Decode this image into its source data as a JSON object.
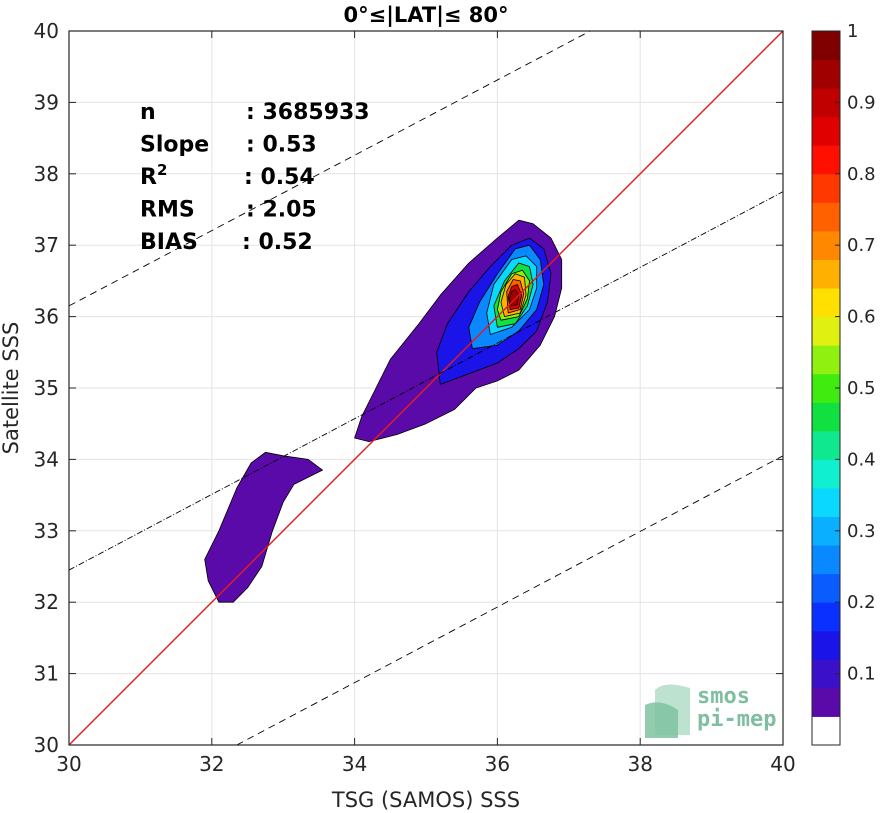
{
  "chart_data": {
    "type": "contour",
    "title": "0°≤|LAT|≤ 80°",
    "xlabel": "TSG (SAMOS) SSS",
    "ylabel": "Satellite SSS",
    "xlim": [
      30,
      40
    ],
    "ylim": [
      30,
      40
    ],
    "x_ticks": [
      "30",
      "32",
      "34",
      "36",
      "38",
      "40"
    ],
    "y_ticks": [
      "30",
      "31",
      "32",
      "33",
      "34",
      "35",
      "36",
      "37",
      "38",
      "39",
      "40"
    ],
    "grid": true,
    "stats": [
      {
        "label": "n",
        "value": ": 3685933"
      },
      {
        "label": "Slope",
        "value": ": 0.53"
      },
      {
        "label": "R",
        "sup": "2",
        "value": ": 0.54"
      },
      {
        "label": "RMS",
        "value": ": 2.05"
      },
      {
        "label": "BIAS",
        "value": ": 0.52"
      }
    ],
    "reference_lines": {
      "one_to_one": {
        "slope": 1,
        "intercept": 0,
        "color": "#e41a1c"
      },
      "regression": {
        "slope": 0.53,
        "intercept_point": [
          30,
          32.45
        ],
        "style": "dash-dot"
      },
      "upper_bound": {
        "points": [
          [
            30,
            36.15
          ],
          [
            37.3,
            40
          ]
        ],
        "style": "dashed"
      },
      "lower_bound": {
        "points": [
          [
            32.35,
            30
          ],
          [
            40,
            34.05
          ]
        ],
        "style": "dashed"
      }
    },
    "density_contours": [
      {
        "level": 0.05,
        "region": "left-blob",
        "polygon": [
          [
            32.1,
            32.0
          ],
          [
            32.3,
            32.0
          ],
          [
            32.5,
            32.2
          ],
          [
            32.7,
            32.5
          ],
          [
            32.85,
            33.0
          ],
          [
            33.0,
            33.4
          ],
          [
            33.15,
            33.65
          ],
          [
            33.35,
            33.75
          ],
          [
            33.55,
            33.85
          ],
          [
            33.35,
            34.0
          ],
          [
            33.0,
            34.05
          ],
          [
            32.75,
            34.1
          ],
          [
            32.55,
            33.95
          ],
          [
            32.35,
            33.6
          ],
          [
            32.1,
            33.0
          ],
          [
            31.9,
            32.6
          ],
          [
            31.95,
            32.3
          ]
        ]
      },
      {
        "level": 0.05,
        "region": "main-blob",
        "polygon": [
          [
            34.0,
            34.3
          ],
          [
            34.2,
            34.25
          ],
          [
            34.6,
            34.35
          ],
          [
            35.0,
            34.5
          ],
          [
            35.4,
            34.7
          ],
          [
            35.7,
            35.0
          ],
          [
            36.0,
            35.1
          ],
          [
            36.3,
            35.25
          ],
          [
            36.6,
            35.6
          ],
          [
            36.8,
            36.0
          ],
          [
            36.9,
            36.4
          ],
          [
            36.9,
            36.8
          ],
          [
            36.75,
            37.1
          ],
          [
            36.5,
            37.3
          ],
          [
            36.3,
            37.35
          ],
          [
            36.0,
            37.1
          ],
          [
            35.6,
            36.75
          ],
          [
            35.2,
            36.3
          ],
          [
            34.9,
            35.9
          ],
          [
            34.5,
            35.4
          ],
          [
            34.3,
            35.0
          ],
          [
            34.1,
            34.6
          ]
        ]
      },
      {
        "level": 0.15,
        "polygon": [
          [
            35.2,
            35.05
          ],
          [
            35.6,
            35.2
          ],
          [
            36.0,
            35.35
          ],
          [
            36.3,
            35.55
          ],
          [
            36.55,
            35.8
          ],
          [
            36.7,
            36.2
          ],
          [
            36.75,
            36.6
          ],
          [
            36.65,
            36.95
          ],
          [
            36.45,
            37.1
          ],
          [
            36.2,
            37.0
          ],
          [
            35.9,
            36.7
          ],
          [
            35.6,
            36.35
          ],
          [
            35.3,
            35.9
          ],
          [
            35.15,
            35.5
          ]
        ]
      },
      {
        "level": 0.25,
        "polygon": [
          [
            35.65,
            35.55
          ],
          [
            36.0,
            35.6
          ],
          [
            36.3,
            35.8
          ],
          [
            36.55,
            36.1
          ],
          [
            36.65,
            36.45
          ],
          [
            36.6,
            36.8
          ],
          [
            36.45,
            37.0
          ],
          [
            36.25,
            36.95
          ],
          [
            36.0,
            36.6
          ],
          [
            35.75,
            36.2
          ],
          [
            35.6,
            35.85
          ]
        ]
      },
      {
        "level": 0.35,
        "polygon": [
          [
            35.9,
            35.75
          ],
          [
            36.2,
            35.85
          ],
          [
            36.45,
            36.1
          ],
          [
            36.55,
            36.4
          ],
          [
            36.55,
            36.7
          ],
          [
            36.4,
            36.85
          ],
          [
            36.2,
            36.8
          ],
          [
            35.95,
            36.45
          ],
          [
            35.85,
            36.05
          ]
        ]
      },
      {
        "level": 0.45,
        "polygon": [
          [
            36.0,
            35.85
          ],
          [
            36.25,
            35.9
          ],
          [
            36.42,
            36.15
          ],
          [
            36.5,
            36.45
          ],
          [
            36.45,
            36.7
          ],
          [
            36.3,
            36.75
          ],
          [
            36.1,
            36.5
          ],
          [
            35.95,
            36.15
          ]
        ]
      },
      {
        "level": 0.55,
        "polygon": [
          [
            36.05,
            35.95
          ],
          [
            36.3,
            36.0
          ],
          [
            36.42,
            36.25
          ],
          [
            36.45,
            36.5
          ],
          [
            36.35,
            36.65
          ],
          [
            36.2,
            36.6
          ],
          [
            36.05,
            36.35
          ],
          [
            36.0,
            36.1
          ]
        ]
      },
      {
        "level": 0.65,
        "polygon": [
          [
            36.1,
            36.0
          ],
          [
            36.32,
            36.05
          ],
          [
            36.4,
            36.3
          ],
          [
            36.38,
            36.55
          ],
          [
            36.25,
            36.6
          ],
          [
            36.12,
            36.45
          ],
          [
            36.05,
            36.2
          ]
        ]
      },
      {
        "level": 0.75,
        "polygon": [
          [
            36.15,
            36.05
          ],
          [
            36.32,
            36.1
          ],
          [
            36.37,
            36.32
          ],
          [
            36.32,
            36.5
          ],
          [
            36.22,
            36.52
          ],
          [
            36.13,
            36.35
          ]
        ]
      },
      {
        "level": 0.85,
        "polygon": [
          [
            36.18,
            36.1
          ],
          [
            36.3,
            36.12
          ],
          [
            36.34,
            36.3
          ],
          [
            36.28,
            36.45
          ],
          [
            36.2,
            36.42
          ],
          [
            36.15,
            36.28
          ]
        ]
      },
      {
        "level": 0.92,
        "polygon": [
          [
            36.2,
            36.15
          ],
          [
            36.28,
            36.17
          ],
          [
            36.3,
            36.3
          ],
          [
            36.25,
            36.38
          ],
          [
            36.2,
            36.35
          ],
          [
            36.17,
            36.25
          ]
        ]
      }
    ],
    "colorbar": {
      "range": [
        0,
        1
      ],
      "ticks": [
        "0.1",
        "0.2",
        "0.3",
        "0.4",
        "0.5",
        "0.6",
        "0.7",
        "0.8",
        "0.9",
        "1"
      ],
      "bands": [
        "#ffffff",
        "#5a0aa8",
        "#3a10c8",
        "#1a14e8",
        "#0a30ff",
        "#0a5cff",
        "#0a88ff",
        "#0ab0ff",
        "#0ad8ff",
        "#10f0d0",
        "#10e890",
        "#10e040",
        "#40ec10",
        "#90f010",
        "#e0f010",
        "#ffe000",
        "#ffb000",
        "#ff8800",
        "#ff6000",
        "#ff3800",
        "#ff0f00",
        "#e00000",
        "#c00000",
        "#a00000",
        "#800000"
      ]
    },
    "logo": {
      "line1": "smos",
      "line2": "pi-mep"
    }
  }
}
